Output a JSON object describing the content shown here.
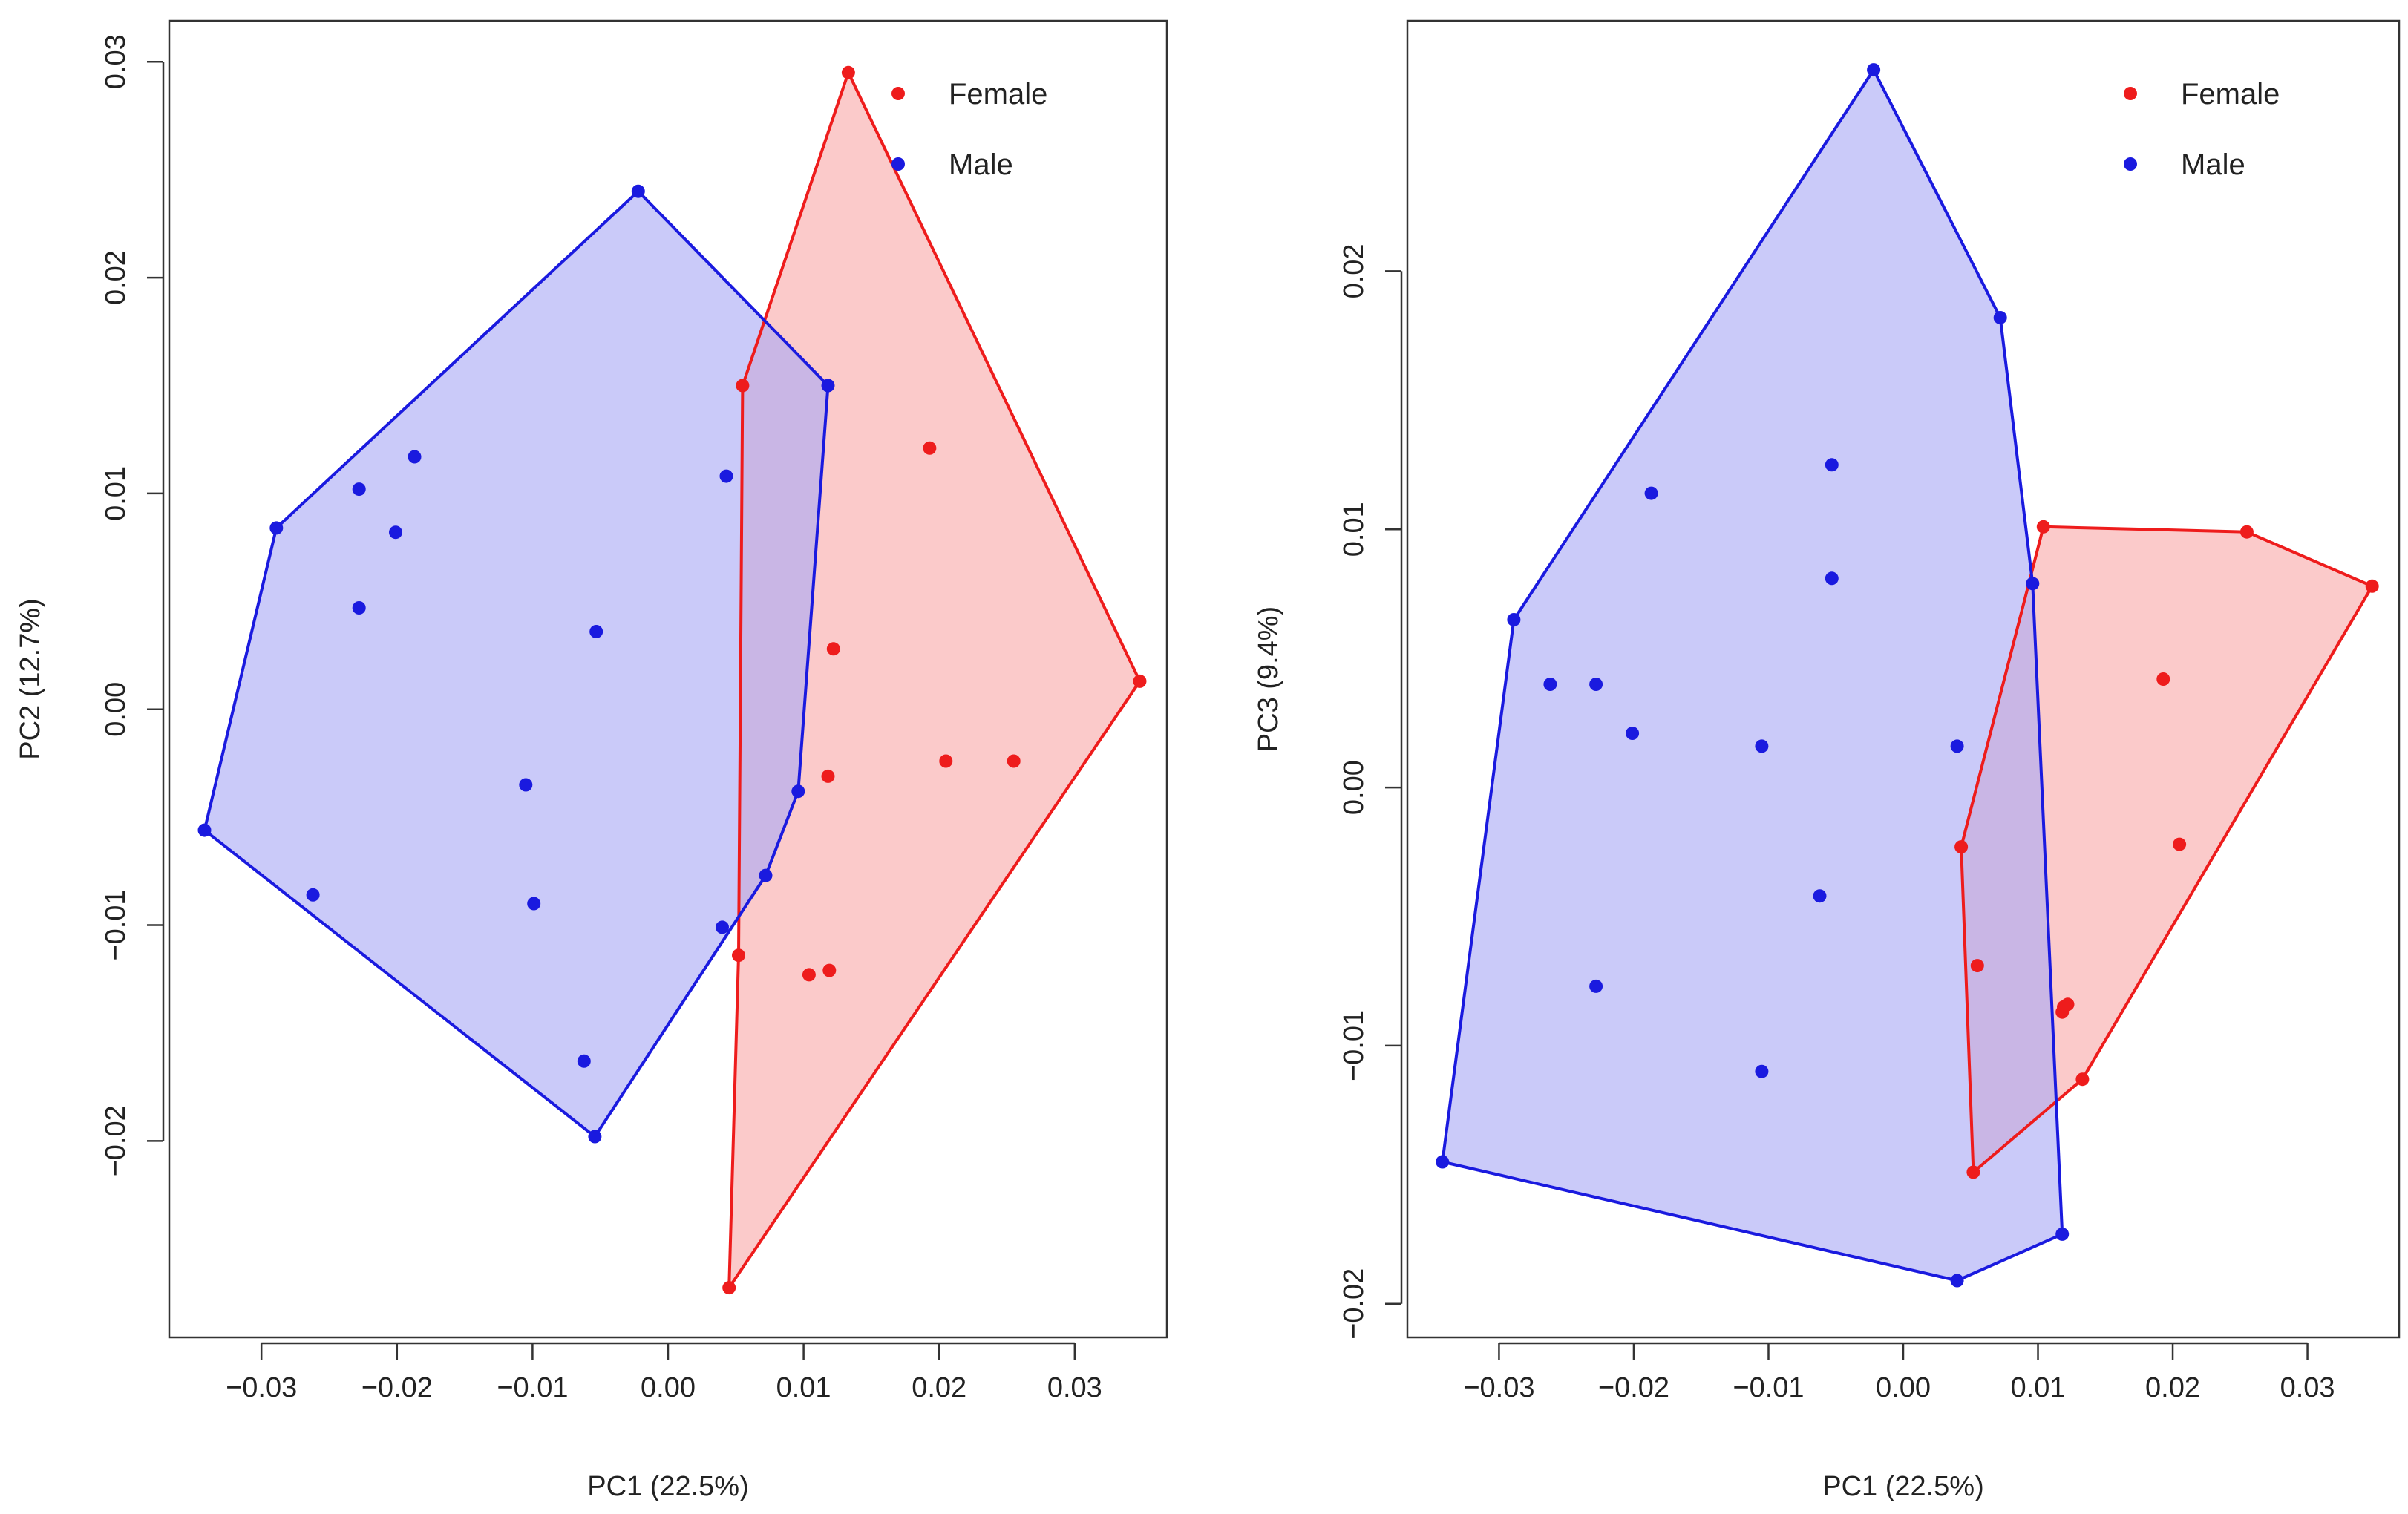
{
  "colors": {
    "female": "#ee1c1c",
    "male": "#1a1adf",
    "female_fill": "#f8aaaa",
    "male_fill": "#aaaaf5",
    "axis": "#333333"
  },
  "chart_data": [
    {
      "type": "scatter",
      "title": "",
      "xlabel": "PC1 (22.5%)",
      "ylabel": "PC2 (12.7%)",
      "xlim": [
        -0.0368,
        0.0368
      ],
      "ylim": [
        -0.0291,
        0.0319
      ],
      "xticks": [
        -0.03,
        -0.02,
        -0.01,
        0.0,
        0.01,
        0.02,
        0.03
      ],
      "xtick_labels": [
        "−0.03",
        "−0.02",
        "−0.01",
        "0.00",
        "0.01",
        "0.02",
        "0.03"
      ],
      "yticks": [
        -0.02,
        -0.01,
        0.0,
        0.01,
        0.02,
        0.03
      ],
      "ytick_labels": [
        "−0.02",
        "−0.01",
        "0.00",
        "0.01",
        "0.02",
        "0.03"
      ],
      "grid": false,
      "legend_position": "top-right",
      "series": [
        {
          "name": "Female",
          "key": "female",
          "x": [
            0.0133,
            0.0055,
            0.0193,
            0.0122,
            0.0118,
            0.0205,
            0.0255,
            0.0052,
            0.0104,
            0.0119,
            0.0045,
            0.0348
          ],
          "y": [
            0.0295,
            0.015,
            0.0121,
            0.0028,
            -0.0031,
            -0.0024,
            -0.0024,
            -0.0114,
            -0.0123,
            -0.0121,
            -0.0268,
            0.0013
          ],
          "hull": [
            [
              0.0133,
              0.0295
            ],
            [
              0.0348,
              0.0013
            ],
            [
              0.0045,
              -0.0268
            ],
            [
              0.0052,
              -0.0114
            ],
            [
              0.0055,
              0.015
            ]
          ]
        },
        {
          "name": "Male",
          "key": "male",
          "x": [
            -0.0022,
            0.0118,
            0.0043,
            -0.0187,
            -0.0228,
            -0.0201,
            -0.0289,
            -0.0228,
            -0.0053,
            -0.0105,
            -0.0342,
            -0.0262,
            -0.0099,
            0.0096,
            0.0072,
            0.004,
            -0.0062,
            -0.0054
          ],
          "y": [
            0.024,
            0.015,
            0.0108,
            0.0117,
            0.0102,
            0.0082,
            0.0084,
            0.0047,
            0.0036,
            -0.0035,
            -0.0056,
            -0.0086,
            -0.009,
            -0.0038,
            -0.0077,
            -0.0101,
            -0.0163,
            -0.0198
          ],
          "hull": [
            [
              -0.0022,
              0.024
            ],
            [
              0.0118,
              0.015
            ],
            [
              0.0096,
              -0.0038
            ],
            [
              0.0072,
              -0.0077
            ],
            [
              -0.0054,
              -0.0198
            ],
            [
              -0.0342,
              -0.0056
            ],
            [
              -0.0289,
              0.0084
            ]
          ]
        }
      ]
    },
    {
      "type": "scatter",
      "title": "",
      "xlabel": "PC1 (22.5%)",
      "ylabel": "PC3 (9.4%)",
      "xlim": [
        -0.0368,
        0.0368
      ],
      "ylim": [
        -0.0213,
        0.0297
      ],
      "xticks": [
        -0.03,
        -0.02,
        -0.01,
        0.0,
        0.01,
        0.02,
        0.03
      ],
      "xtick_labels": [
        "−0.03",
        "−0.02",
        "−0.01",
        "0.00",
        "0.01",
        "0.02",
        "0.03"
      ],
      "yticks": [
        -0.02,
        -0.01,
        0.0,
        0.01,
        0.02
      ],
      "ytick_labels": [
        "−0.02",
        "−0.01",
        "0.00",
        "0.01",
        "0.02"
      ],
      "grid": false,
      "legend_position": "top-right",
      "series": [
        {
          "name": "Female",
          "key": "female",
          "x": [
            0.0104,
            0.0255,
            0.0348,
            0.0193,
            0.0205,
            0.0043,
            0.0055,
            0.0119,
            0.0122,
            0.0118,
            0.0133,
            0.0052
          ],
          "y": [
            0.0101,
            0.0099,
            0.0078,
            0.0042,
            -0.0022,
            -0.0023,
            -0.0069,
            -0.0085,
            -0.0084,
            -0.0087,
            -0.0113,
            -0.0149
          ],
          "hull": [
            [
              0.0104,
              0.0101
            ],
            [
              0.0255,
              0.0099
            ],
            [
              0.0348,
              0.0078
            ],
            [
              0.0133,
              -0.0113
            ],
            [
              0.0052,
              -0.0149
            ],
            [
              0.0043,
              -0.0023
            ]
          ]
        },
        {
          "name": "Male",
          "key": "male",
          "x": [
            -0.0022,
            0.0072,
            -0.0187,
            -0.0053,
            -0.0053,
            0.0096,
            -0.0289,
            -0.0262,
            -0.0228,
            -0.0201,
            -0.0105,
            0.004,
            -0.0062,
            -0.0228,
            -0.0105,
            -0.0342,
            0.0118,
            0.004
          ],
          "y": [
            0.0278,
            0.0182,
            0.0114,
            0.0125,
            0.0081,
            0.0079,
            0.0065,
            0.004,
            0.004,
            0.0021,
            0.0016,
            0.0016,
            -0.0042,
            -0.0077,
            -0.011,
            -0.0145,
            -0.0173,
            -0.0191
          ],
          "hull": [
            [
              -0.0022,
              0.0278
            ],
            [
              0.0072,
              0.0182
            ],
            [
              0.0096,
              0.0079
            ],
            [
              0.0118,
              -0.0173
            ],
            [
              0.004,
              -0.0191
            ],
            [
              -0.0342,
              -0.0145
            ],
            [
              -0.0289,
              0.0065
            ]
          ]
        }
      ]
    }
  ]
}
